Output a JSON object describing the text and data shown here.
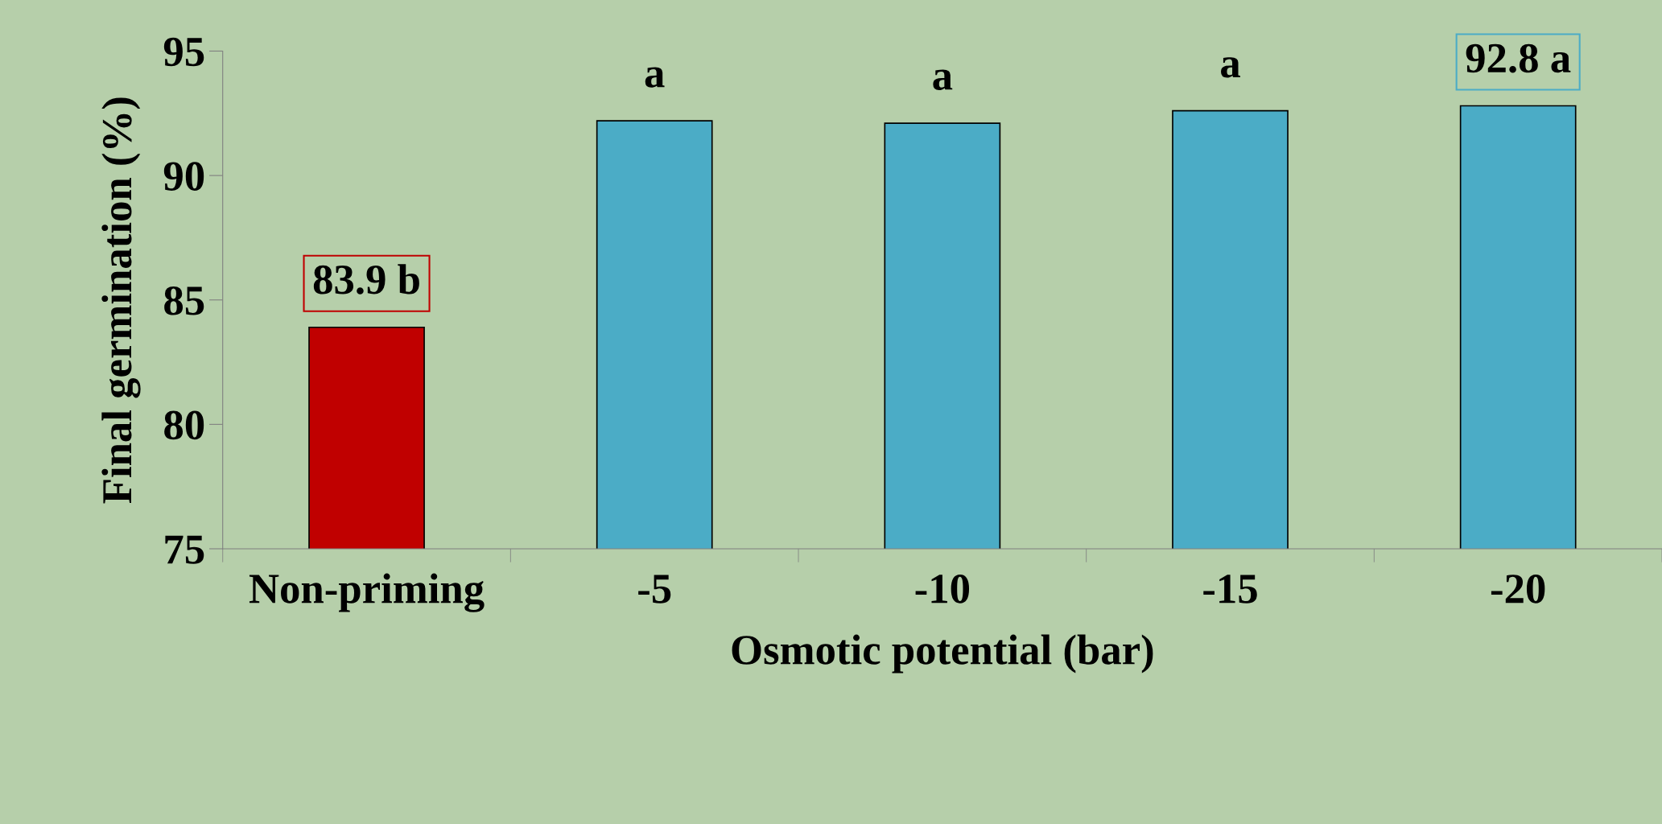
{
  "chart_data": {
    "type": "bar",
    "xlabel": "Osmotic potential (bar)",
    "ylabel": "Final germination (%)",
    "categories": [
      "Non-priming",
      "-5",
      "-10",
      "-15",
      "-20"
    ],
    "values": [
      83.9,
      92.2,
      92.1,
      92.6,
      92.8
    ],
    "colors": [
      "#c00000",
      "#4bacc6",
      "#4bacc6",
      "#4bacc6",
      "#4bacc6"
    ],
    "ylim": [
      75,
      95
    ],
    "yticks": [
      75,
      80,
      85,
      90,
      95
    ],
    "annotations": [
      {
        "text": "83.9 b",
        "x": "Non-priming",
        "y": 83.9
      },
      {
        "text": "a",
        "x": "-5",
        "y": 92.2
      },
      {
        "text": "a",
        "x": "-10",
        "y": 92.1
      },
      {
        "text": "a",
        "x": "-15",
        "y": 92.6
      },
      {
        "text": "92.8 a",
        "x": "-20",
        "y": 92.8
      }
    ]
  }
}
